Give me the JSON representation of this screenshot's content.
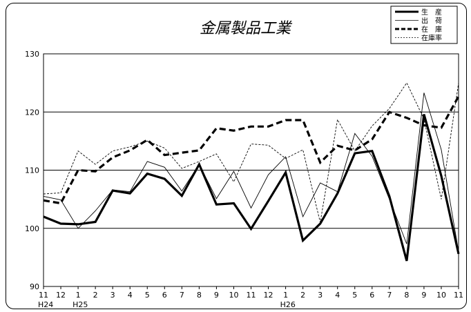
{
  "chart_data": {
    "type": "line",
    "title": "金属製品工業",
    "x_tick_labels": [
      "11",
      "12",
      "1",
      "2",
      "3",
      "4",
      "5",
      "6",
      "7",
      "8",
      "9",
      "10",
      "11",
      "12",
      "1",
      "2",
      "3",
      "4",
      "5",
      "6",
      "7",
      "8",
      "9",
      "10",
      "11"
    ],
    "year_labels": [
      {
        "label": "H24",
        "index": 0
      },
      {
        "label": "H25",
        "index": 2
      },
      {
        "label": "H26",
        "index": 14
      }
    ],
    "ylim": [
      90,
      130
    ],
    "yticks": [
      90,
      100,
      110,
      120,
      130
    ],
    "grid": true,
    "legend_position": "top-right",
    "series": [
      {
        "name": "生　産",
        "style": "thick-solid",
        "values": [
          102.0,
          100.8,
          100.7,
          101.1,
          106.5,
          106.0,
          109.4,
          108.5,
          105.6,
          111.0,
          104.1,
          104.3,
          99.9,
          104.7,
          109.6,
          97.9,
          100.8,
          106.0,
          112.9,
          113.3,
          105.5,
          94.4,
          119.6,
          109.0,
          95.6
        ]
      },
      {
        "name": "出　荷",
        "style": "thin-solid",
        "values": [
          105.5,
          104.9,
          100.0,
          103.0,
          106.6,
          106.3,
          111.5,
          110.5,
          106.4,
          111.0,
          105.1,
          109.8,
          103.5,
          109.2,
          112.3,
          102.0,
          107.8,
          106.3,
          116.3,
          112.4,
          105.0,
          97.3,
          123.3,
          113.5,
          96.0
        ]
      },
      {
        "name": "在　庫",
        "style": "thick-dashed",
        "values": [
          104.8,
          104.3,
          110.0,
          109.8,
          112.2,
          113.4,
          115.2,
          112.6,
          113.0,
          113.4,
          117.2,
          116.8,
          117.5,
          117.5,
          118.6,
          118.6,
          111.3,
          114.2,
          113.4,
          115.3,
          120.0,
          119.0,
          117.7,
          117.3,
          122.7
        ]
      },
      {
        "name": "在庫率",
        "style": "thin-dashed",
        "values": [
          105.9,
          106.1,
          113.3,
          111.0,
          113.3,
          114.0,
          115.0,
          113.8,
          110.3,
          111.5,
          112.8,
          108.0,
          114.5,
          114.3,
          112.0,
          113.5,
          101.0,
          118.7,
          113.3,
          117.6,
          120.6,
          125.0,
          118.8,
          105.0,
          125.0
        ]
      }
    ]
  }
}
